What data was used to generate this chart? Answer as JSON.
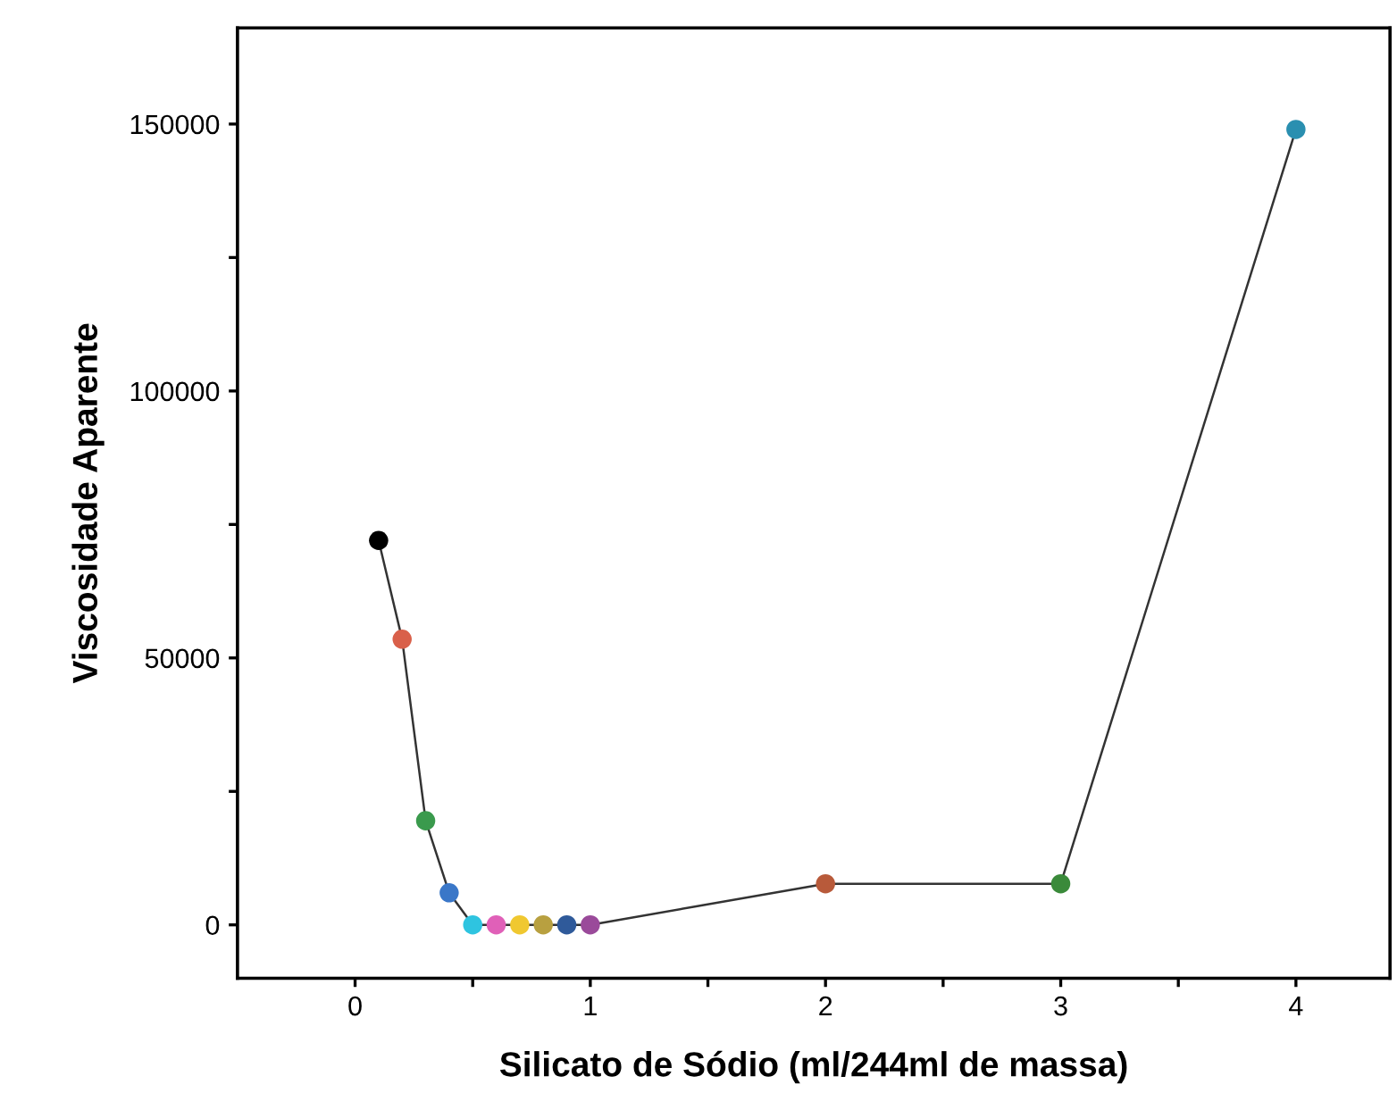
{
  "chart_data": {
    "type": "line",
    "xlabel": "Silicato de Sódio (ml/244ml de massa)",
    "ylabel": "Viscosidade Aparente",
    "x": [
      0.1,
      0.2,
      0.3,
      0.4,
      0.5,
      0.6,
      0.7,
      0.8,
      0.9,
      1.0,
      2,
      3,
      4
    ],
    "series": [
      {
        "color": "#333333",
        "values": [
          72000,
          53500,
          19500,
          6000,
          0,
          0,
          0,
          0,
          0,
          0,
          7700,
          7700,
          149000
        ],
        "colors": [
          "#000000",
          "#d9604a",
          "#3a9a4d",
          "#3a77c8",
          "#2ec4e0",
          "#e060b8",
          "#f0c830",
          "#b8a040",
          "#2f5a9a",
          "#9a4a9a",
          "#b85a3a",
          "#3a8a3a",
          "#2a8fb0"
        ]
      }
    ],
    "marker": "circle",
    "line_style": "solid",
    "xlim": [
      -0.5,
      4.4
    ],
    "xticks": [
      0,
      {
        "value": 0.5,
        "label": null
      },
      1,
      {
        "value": 1.5,
        "label": null
      },
      2,
      {
        "value": 2.5,
        "label": null
      },
      3,
      {
        "value": 3.5,
        "label": null
      },
      4
    ],
    "ylim": [
      -10000,
      168000
    ],
    "yticks": [
      0,
      {
        "value": 25000,
        "label": null
      },
      50000,
      {
        "value": 75000,
        "label": null
      },
      100000,
      {
        "value": 125000,
        "label": null
      },
      150000
    ],
    "grid": false,
    "legend": false
  }
}
